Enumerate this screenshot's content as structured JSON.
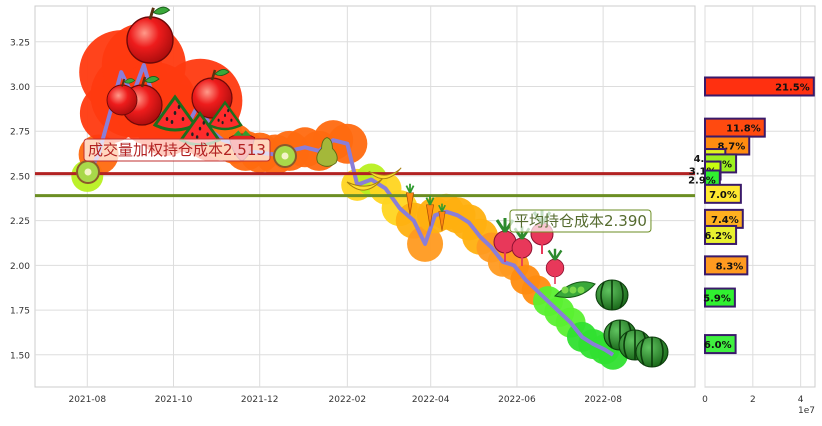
{
  "chart_data": [
    {
      "type": "line",
      "x_ticks": [
        "2021-08",
        "2021-10",
        "2021-12",
        "2022-02",
        "2022-04",
        "2022-06",
        "2022-08"
      ],
      "y_ticks": [
        1.5,
        1.75,
        2.0,
        2.25,
        2.5,
        2.75,
        3.0,
        3.25
      ],
      "ylim": [
        1.32,
        3.45
      ],
      "grid": true,
      "series": [
        {
          "values": [
            {
              "x": "2021-08-01",
              "y": 2.5
            },
            {
              "x": "2021-08-09",
              "y": 2.62
            },
            {
              "x": "2021-08-17",
              "y": 2.85
            },
            {
              "x": "2021-08-25",
              "y": 3.08
            },
            {
              "x": "2021-09-02",
              "y": 2.95
            },
            {
              "x": "2021-09-10",
              "y": 3.12
            },
            {
              "x": "2021-09-18",
              "y": 2.9
            },
            {
              "x": "2021-09-26",
              "y": 2.78
            },
            {
              "x": "2021-10-04",
              "y": 2.85
            },
            {
              "x": "2021-10-12",
              "y": 2.8
            },
            {
              "x": "2021-10-20",
              "y": 2.92
            },
            {
              "x": "2021-10-28",
              "y": 2.75
            },
            {
              "x": "2021-11-05",
              "y": 2.7
            },
            {
              "x": "2021-11-13",
              "y": 2.68
            },
            {
              "x": "2021-11-21",
              "y": 2.64
            },
            {
              "x": "2021-12-01",
              "y": 2.63
            },
            {
              "x": "2021-12-12",
              "y": 2.62
            },
            {
              "x": "2021-12-22",
              "y": 2.64
            },
            {
              "x": "2022-01-02",
              "y": 2.66
            },
            {
              "x": "2022-01-12",
              "y": 2.64
            },
            {
              "x": "2022-01-22",
              "y": 2.7
            },
            {
              "x": "2022-02-01",
              "y": 2.68
            },
            {
              "x": "2022-02-08",
              "y": 2.45
            },
            {
              "x": "2022-02-18",
              "y": 2.48
            },
            {
              "x": "2022-02-28",
              "y": 2.43
            },
            {
              "x": "2022-03-10",
              "y": 2.32
            },
            {
              "x": "2022-03-20",
              "y": 2.25
            },
            {
              "x": "2022-03-28",
              "y": 2.12
            },
            {
              "x": "2022-04-04",
              "y": 2.28
            },
            {
              "x": "2022-04-12",
              "y": 2.3
            },
            {
              "x": "2022-04-20",
              "y": 2.28
            },
            {
              "x": "2022-04-28",
              "y": 2.24
            },
            {
              "x": "2022-05-06",
              "y": 2.16
            },
            {
              "x": "2022-05-14",
              "y": 2.1
            },
            {
              "x": "2022-05-22",
              "y": 2.02
            },
            {
              "x": "2022-05-30",
              "y": 2.0
            },
            {
              "x": "2022-06-07",
              "y": 1.92
            },
            {
              "x": "2022-06-15",
              "y": 1.86
            },
            {
              "x": "2022-06-23",
              "y": 1.8
            },
            {
              "x": "2022-07-01",
              "y": 1.74
            },
            {
              "x": "2022-07-09",
              "y": 1.68
            },
            {
              "x": "2022-07-17",
              "y": 1.6
            },
            {
              "x": "2022-07-25",
              "y": 1.56
            },
            {
              "x": "2022-08-02",
              "y": 1.53
            },
            {
              "x": "2022-08-08",
              "y": 1.5
            }
          ]
        }
      ],
      "reference_lines": [
        {
          "label": "成交量加权持仓成本2.513",
          "value": 2.513,
          "color": "#b22222"
        },
        {
          "label": "平均持仓成本2.390",
          "value": 2.39,
          "color": "#6b8e23"
        }
      ]
    },
    {
      "type": "bar",
      "orientation": "horizontal",
      "x_ticks": [
        "0",
        "2",
        "4"
      ],
      "x_multiplier": "1e7",
      "bars": [
        {
          "price": 3.0,
          "value": 4.55,
          "label": "21.5%",
          "color": "#ff3010"
        },
        {
          "price": 2.77,
          "value": 2.5,
          "label": "11.8%",
          "color": "#ff4a10"
        },
        {
          "price": 2.67,
          "value": 1.85,
          "label": "8.7%",
          "color": "#ff8c10"
        },
        {
          "price": 2.6,
          "value": 0.85,
          "label": "4.1%",
          "color": "#e0f020"
        },
        {
          "price": 2.57,
          "value": 1.3,
          "label": "6.1%",
          "color": "#9cf020"
        },
        {
          "price": 2.53,
          "value": 0.65,
          "label": "3.1%",
          "color": "#c8ff10"
        },
        {
          "price": 2.48,
          "value": 0.62,
          "label": "2.9%",
          "color": "#30f030"
        },
        {
          "price": 2.4,
          "value": 1.5,
          "label": "7.0%",
          "color": "#ffe830"
        },
        {
          "price": 2.26,
          "value": 1.58,
          "label": "7.4%",
          "color": "#ffb020"
        },
        {
          "price": 2.17,
          "value": 1.3,
          "label": "6.2%",
          "color": "#e8f030"
        },
        {
          "price": 2.0,
          "value": 1.77,
          "label": "8.3%",
          "color": "#ff9a20"
        },
        {
          "price": 1.82,
          "value": 1.25,
          "label": "5.9%",
          "color": "#30f030"
        },
        {
          "price": 1.56,
          "value": 1.28,
          "label": "6.0%",
          "color": "#40f040"
        }
      ]
    }
  ]
}
